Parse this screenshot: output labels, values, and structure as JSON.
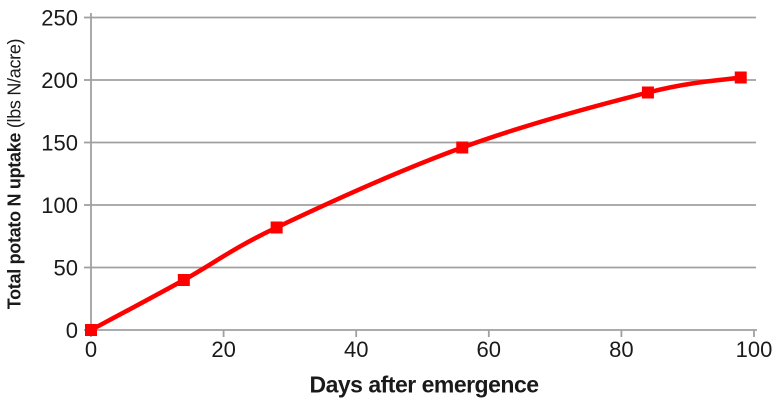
{
  "chart_data": {
    "type": "line",
    "smooth": true,
    "marker": "square",
    "x": [
      0,
      14,
      28,
      56,
      84,
      98
    ],
    "y": [
      0,
      40,
      82,
      146,
      190,
      202
    ],
    "xlabel": "Days after emergence",
    "ylabel": {
      "bold": "Total potato N uptake",
      "normal": "(lbs N/acre)"
    },
    "xlim": [
      0,
      100
    ],
    "ylim": [
      0,
      250
    ],
    "x_ticks": [
      0,
      20,
      40,
      60,
      80,
      100
    ],
    "y_ticks": [
      0,
      50,
      100,
      150,
      200,
      250
    ],
    "grid": true,
    "legend": false,
    "colors": {
      "line": "#FF0000",
      "grid": "#A0A0A0",
      "axis": "#A0A0A0",
      "text": "#1A1A1A",
      "background": "#FFFFFF"
    }
  }
}
